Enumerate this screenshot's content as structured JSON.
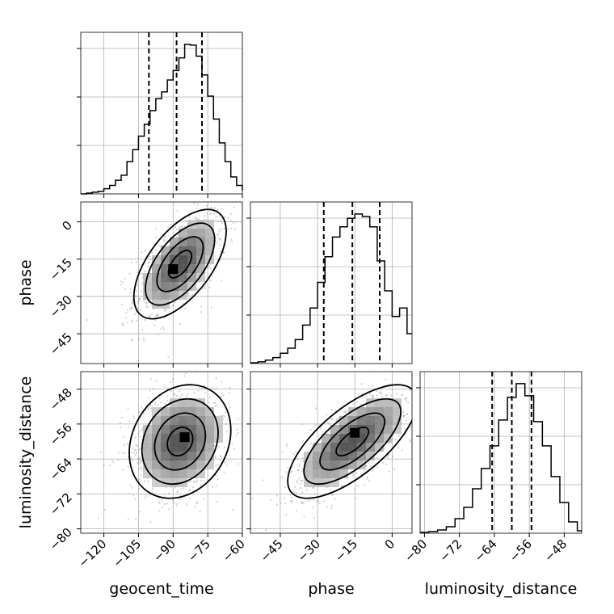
{
  "chart_data": {
    "type": "corner",
    "parameters": [
      "geocent_time",
      "phase",
      "luminosity_distance"
    ],
    "grid": true,
    "axes": {
      "geocent_time": {
        "range": [
          -130,
          -60
        ],
        "ticks": [
          -120,
          -105,
          -90,
          -75,
          -60
        ],
        "tick_labels": [
          "−120",
          "−105",
          "−90",
          "−75",
          "−60"
        ]
      },
      "phase": {
        "range": [
          -57,
          8
        ],
        "ticks": [
          -45,
          -30,
          -15,
          0
        ],
        "tick_labels": [
          "−45",
          "−30",
          "−15",
          "0"
        ]
      },
      "luminosity_distance": {
        "range": [
          -81,
          -44
        ],
        "ticks": [
          -80,
          -72,
          -64,
          -56,
          -48
        ],
        "tick_labels": [
          "−80",
          "−72",
          "−64",
          "−56",
          "−48"
        ]
      }
    },
    "axis_labels": {
      "geocent_time": "geocent_time",
      "phase": "phase",
      "luminosity_distance": "luminosity_distance"
    },
    "histograms": [
      {
        "parameter": "geocent_time",
        "bin_edges": [
          -130,
          -127.5,
          -125,
          -122.5,
          -120,
          -117.5,
          -115,
          -112.5,
          -110,
          -107.5,
          -105,
          -102.5,
          -100,
          -97.5,
          -95,
          -92.5,
          -90,
          -87.5,
          -85,
          -82.5,
          -80,
          -77.5,
          -75,
          -72.5,
          -70,
          -67.5,
          -65,
          -62.5,
          -60
        ],
        "counts": [
          0,
          1,
          2,
          3,
          6,
          10,
          16,
          22,
          38,
          52,
          68,
          82,
          98,
          112,
          120,
          134,
          145,
          160,
          176,
          175,
          162,
          140,
          115,
          88,
          60,
          38,
          20,
          10,
          4
        ],
        "quantiles": [
          -100.5,
          -88.5,
          -77.5
        ]
      },
      {
        "parameter": "phase",
        "bin_edges": [
          -57,
          -54,
          -51,
          -48,
          -45,
          -42,
          -39,
          -36,
          -33,
          -30,
          -27,
          -24,
          -21,
          -18,
          -15,
          -12,
          -9,
          -6,
          -3,
          0,
          3,
          6,
          8
        ],
        "counts": [
          1,
          2,
          4,
          7,
          12,
          18,
          28,
          45,
          65,
          95,
          125,
          148,
          160,
          170,
          175,
          172,
          160,
          120,
          85,
          55,
          65,
          35
        ],
        "quantiles": [
          -27.5,
          -16,
          -5
        ]
      },
      {
        "parameter": "luminosity_distance",
        "bin_edges": [
          -81,
          -79,
          -77,
          -75,
          -73,
          -71,
          -69,
          -67,
          -65,
          -63,
          -61,
          -59,
          -57,
          -55,
          -53,
          -51,
          -49,
          -47,
          -45,
          -44
        ],
        "counts": [
          1,
          2,
          4,
          8,
          18,
          32,
          55,
          80,
          108,
          140,
          168,
          185,
          170,
          138,
          108,
          70,
          38,
          14,
          3
        ],
        "quantiles": [
          -64.5,
          -60,
          -55.5
        ]
      }
    ],
    "joint": [
      {
        "x": "geocent_time",
        "y": "phase",
        "mean": [
          -87,
          -17
        ],
        "sd": [
          10,
          11
        ],
        "correlation": 0.6,
        "n_points": 900,
        "peak": [
          -90,
          -19
        ]
      },
      {
        "x": "geocent_time",
        "y": "luminosity_distance",
        "mean": [
          -87,
          -60
        ],
        "sd": [
          11,
          6.5
        ],
        "correlation": 0.2,
        "n_points": 900,
        "peak": [
          -85,
          -59
        ]
      },
      {
        "x": "phase",
        "y": "luminosity_distance",
        "mean": [
          -16,
          -60
        ],
        "sd": [
          13,
          6.5
        ],
        "correlation": 0.7,
        "n_points": 900,
        "peak": [
          -15,
          -58
        ]
      }
    ],
    "contour_levels_sigma": [
      0.5,
      1.0,
      1.5,
      2.0
    ]
  },
  "colors": {
    "line": "#000000",
    "grid": "#b0b0b0",
    "scatter": "#808080",
    "quantile": "#000000"
  }
}
